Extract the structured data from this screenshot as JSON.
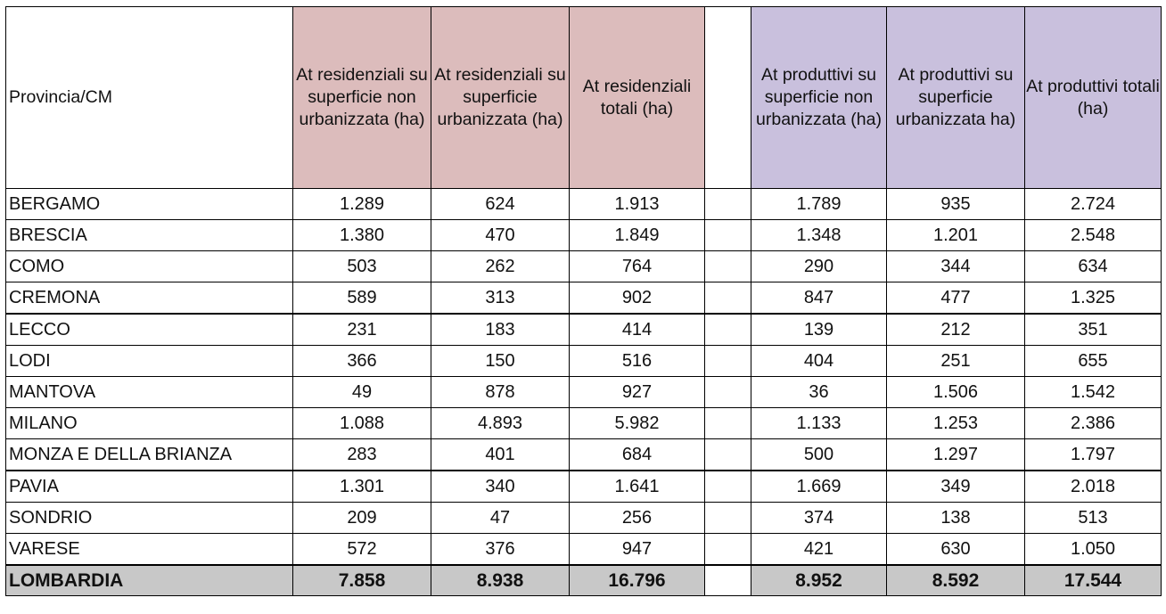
{
  "table": {
    "headers": {
      "provincia": "Provincia/CM",
      "res_non_urb": "At residenziali su superficie non urbanizzata (ha)",
      "res_urb": "At residenziali su superficie urbanizzata (ha)",
      "res_tot": "At residenziali totali (ha)",
      "gap": "",
      "prod_non_urb": "At produttivi su superficie non urbanizzata (ha)",
      "prod_urb": "At produttivi su superficie urbanizzata ha)",
      "prod_tot": "At produttivi totali (ha)"
    },
    "rows": [
      {
        "name": "BERGAMO",
        "res_non_urb": "1.289",
        "res_urb": "624",
        "res_tot": "1.913",
        "prod_non_urb": "1.789",
        "prod_urb": "935",
        "prod_tot": "2.724"
      },
      {
        "name": "BRESCIA",
        "res_non_urb": "1.380",
        "res_urb": "470",
        "res_tot": "1.849",
        "prod_non_urb": "1.348",
        "prod_urb": "1.201",
        "prod_tot": "2.548"
      },
      {
        "name": "COMO",
        "res_non_urb": "503",
        "res_urb": "262",
        "res_tot": "764",
        "prod_non_urb": "290",
        "prod_urb": "344",
        "prod_tot": "634"
      },
      {
        "name": "CREMONA",
        "res_non_urb": "589",
        "res_urb": "313",
        "res_tot": "902",
        "prod_non_urb": "847",
        "prod_urb": "477",
        "prod_tot": "1.325"
      },
      {
        "name": "LECCO",
        "res_non_urb": "231",
        "res_urb": "183",
        "res_tot": "414",
        "prod_non_urb": "139",
        "prod_urb": "212",
        "prod_tot": "351"
      },
      {
        "name": "LODI",
        "res_non_urb": "366",
        "res_urb": "150",
        "res_tot": "516",
        "prod_non_urb": "404",
        "prod_urb": "251",
        "prod_tot": "655"
      },
      {
        "name": "MANTOVA",
        "res_non_urb": "49",
        "res_urb": "878",
        "res_tot": "927",
        "prod_non_urb": "36",
        "prod_urb": "1.506",
        "prod_tot": "1.542"
      },
      {
        "name": "MILANO",
        "res_non_urb": "1.088",
        "res_urb": "4.893",
        "res_tot": "5.982",
        "prod_non_urb": "1.133",
        "prod_urb": "1.253",
        "prod_tot": "2.386"
      },
      {
        "name": "MONZA E DELLA BRIANZA",
        "res_non_urb": "283",
        "res_urb": "401",
        "res_tot": "684",
        "prod_non_urb": "500",
        "prod_urb": "1.297",
        "prod_tot": "1.797"
      },
      {
        "name": "PAVIA",
        "res_non_urb": "1.301",
        "res_urb": "340",
        "res_tot": "1.641",
        "prod_non_urb": "1.669",
        "prod_urb": "349",
        "prod_tot": "2.018"
      },
      {
        "name": "SONDRIO",
        "res_non_urb": "209",
        "res_urb": "47",
        "res_tot": "256",
        "prod_non_urb": "374",
        "prod_urb": "138",
        "prod_tot": "513"
      },
      {
        "name": "VARESE",
        "res_non_urb": "572",
        "res_urb": "376",
        "res_tot": "947",
        "prod_non_urb": "421",
        "prod_urb": "630",
        "prod_tot": "1.050"
      }
    ],
    "total": {
      "name": "LOMBARDIA",
      "res_non_urb": "7.858",
      "res_urb": "8.938",
      "res_tot": "16.796",
      "prod_non_urb": "8.952",
      "prod_urb": "8.592",
      "prod_tot": "17.544"
    },
    "colors": {
      "residential_header": "#dcbcbc",
      "productive_header": "#c9c0dd",
      "total_row": "#c8c8c8"
    }
  }
}
